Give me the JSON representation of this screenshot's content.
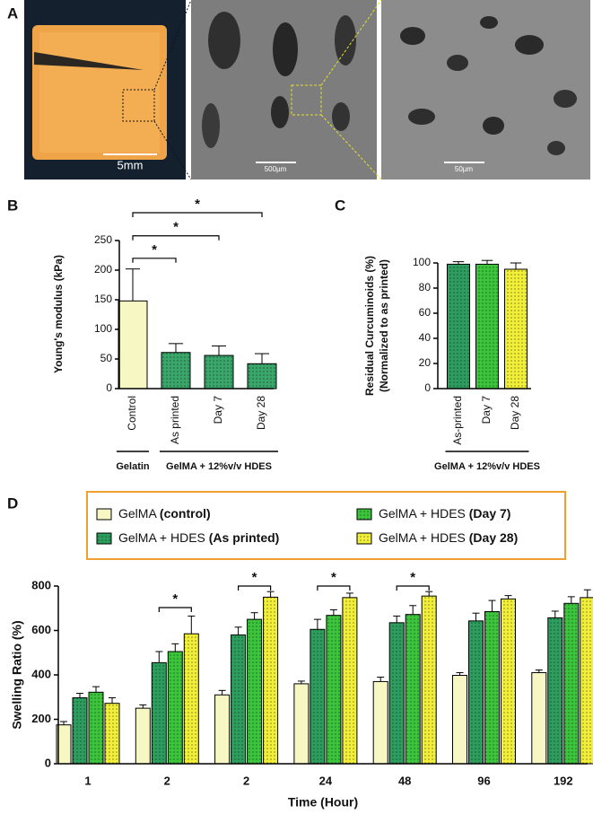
{
  "panel_a": {
    "label": "A",
    "scale_bars": [
      "5mm",
      "500µm",
      "50µm"
    ]
  },
  "chart_data": [
    {
      "type": "bar",
      "panel_label": "B",
      "ylabel": "Young's modulus (kPa)",
      "categories": [
        "Control",
        "As printed",
        "Day 7",
        "Day 28"
      ],
      "values": [
        148,
        61,
        56,
        42
      ],
      "errors": [
        54,
        15,
        16,
        17
      ],
      "colors": [
        "#f7f7c4",
        "#3aa66a",
        "#3aa66a",
        "#3aa66a"
      ],
      "pattern": [
        false,
        true,
        true,
        true
      ],
      "ylim": [
        0,
        250
      ],
      "yticks": [
        0,
        50,
        100,
        150,
        200,
        250
      ],
      "groups": [
        {
          "label": "Gelatin",
          "categories": [
            0,
            0
          ]
        },
        {
          "label": "GelMA + 12%v/v HDES",
          "categories": [
            1,
            3
          ]
        }
      ],
      "annotations": [
        {
          "text": "*",
          "bars": [
            0,
            1
          ],
          "y": 220
        },
        {
          "text": "*",
          "bars": [
            0,
            2
          ],
          "y": 258
        },
        {
          "text": "*",
          "bars": [
            0,
            3
          ],
          "y": 297
        }
      ]
    },
    {
      "type": "bar",
      "panel_label": "C",
      "ylabel": [
        "Residual Curcuminoids (%)",
        "(Normalized to as printed)"
      ],
      "categories": [
        "As-printed",
        "Day 7",
        "Day 28"
      ],
      "values": [
        99,
        99,
        95
      ],
      "errors": [
        2,
        3,
        5
      ],
      "colors": [
        "#2e9e5e",
        "#3cc43c",
        "#f2ef3a"
      ],
      "pattern": [
        true,
        true,
        true
      ],
      "ylim": [
        0,
        100
      ],
      "yticks": [
        0,
        20,
        40,
        60,
        80,
        100
      ],
      "groups": [
        {
          "label": "GelMA + 12%v/v HDES",
          "categories": [
            0,
            2
          ]
        }
      ]
    },
    {
      "type": "bar",
      "panel_label": "D",
      "ylabel": "Swelling Ratio (%)",
      "xlabel": "Time (Hour)",
      "categories": [
        "1",
        "2",
        "2",
        "24",
        "48",
        "96",
        "192"
      ],
      "series": [
        {
          "name": "GelMA (control)",
          "color": "#f7f7c4",
          "pattern": false,
          "values": [
            175,
            250,
            310,
            360,
            370,
            398,
            410
          ],
          "errors": [
            15,
            15,
            20,
            12,
            20,
            12,
            12
          ]
        },
        {
          "name": "GelMA + HDES (As printed)",
          "color": "#2e9e5e",
          "pattern": true,
          "values": [
            297,
            455,
            580,
            605,
            635,
            643,
            657
          ],
          "errors": [
            20,
            50,
            35,
            45,
            30,
            35,
            30
          ]
        },
        {
          "name": "GelMA + HDES (Day 7)",
          "color": "#3cc43c",
          "pattern": true,
          "values": [
            322,
            505,
            650,
            668,
            672,
            685,
            722
          ],
          "errors": [
            25,
            35,
            30,
            25,
            40,
            50,
            30
          ]
        },
        {
          "name": "GelMA + HDES (Day 28)",
          "color": "#f2ef3a",
          "pattern": true,
          "values": [
            272,
            585,
            750,
            748,
            755,
            742,
            748
          ],
          "errors": [
            25,
            80,
            25,
            20,
            20,
            15,
            35
          ]
        }
      ],
      "ylim": [
        0,
        800
      ],
      "yticks": [
        0,
        200,
        400,
        600,
        800
      ],
      "legend": "top",
      "annotations": [
        {
          "text": "*",
          "bars": [
            [
              1,
              1
            ],
            [
              1,
              3
            ]
          ],
          "y": 703
        },
        {
          "text": "*",
          "bars": [
            [
              2,
              1
            ],
            [
              2,
              3
            ]
          ],
          "y": 800
        },
        {
          "text": "*",
          "bars": [
            [
              3,
              1
            ],
            [
              3,
              3
            ]
          ],
          "y": 800
        },
        {
          "text": "*",
          "bars": [
            [
              4,
              1
            ],
            [
              4,
              3
            ]
          ],
          "y": 800
        }
      ]
    }
  ]
}
